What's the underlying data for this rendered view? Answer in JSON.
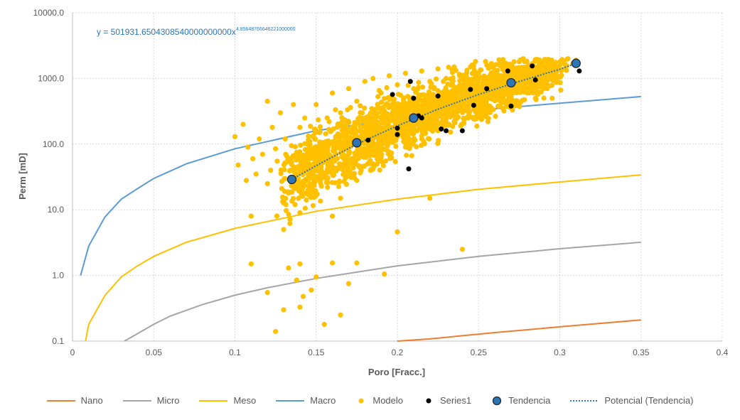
{
  "chart_data": {
    "type": "scatter",
    "title": "",
    "xlabel": "Poro [Fracc.]",
    "ylabel": "Perm [mD]",
    "xlim": [
      0,
      0.4
    ],
    "ylim": [
      0.1,
      10000
    ],
    "y_scale": "log",
    "grid": true,
    "legend_position": "bottom",
    "x_ticks": [
      "0",
      "0.05",
      "0.1",
      "0.15",
      "0.2",
      "0.25",
      "0.3",
      "0.35",
      "0.4"
    ],
    "y_ticks": [
      "0.1",
      "1.0",
      "10.0",
      "100.0",
      "1000.0",
      "10000.0"
    ],
    "annotation": {
      "base": "y = 501931.6504308540000000000x",
      "exponent": "4.85648766646221000000"
    },
    "series": [
      {
        "name": "Nano",
        "kind": "line",
        "color": "#ED7D31",
        "x": [
          0.2,
          0.22,
          0.24,
          0.26,
          0.28,
          0.3,
          0.32,
          0.35
        ],
        "y": [
          0.1,
          0.108,
          0.121,
          0.135,
          0.149,
          0.165,
          0.182,
          0.21
        ]
      },
      {
        "name": "Micro",
        "kind": "line",
        "color": "#A5A5A5",
        "x": [
          0.032,
          0.04,
          0.05,
          0.06,
          0.08,
          0.1,
          0.12,
          0.15,
          0.2,
          0.25,
          0.3,
          0.35
        ],
        "y": [
          0.1,
          0.13,
          0.18,
          0.24,
          0.36,
          0.5,
          0.65,
          0.9,
          1.4,
          1.95,
          2.55,
          3.2
        ]
      },
      {
        "name": "Meso",
        "kind": "line",
        "color": "#FFC000",
        "x": [
          0.008,
          0.01,
          0.02,
          0.03,
          0.04,
          0.05,
          0.07,
          0.1,
          0.15,
          0.2,
          0.25,
          0.3,
          0.35
        ],
        "y": [
          0.1,
          0.18,
          0.5,
          0.95,
          1.4,
          1.95,
          3.2,
          5.2,
          9.5,
          14.5,
          20.5,
          26.5,
          34
        ]
      },
      {
        "name": "Macro",
        "kind": "line",
        "color": "#5B9BD5",
        "x": [
          0.005,
          0.01,
          0.02,
          0.03,
          0.04,
          0.05,
          0.07,
          0.1,
          0.15,
          0.2,
          0.25,
          0.3,
          0.35
        ],
        "y": [
          1.0,
          2.8,
          7.8,
          14.5,
          21,
          30,
          50,
          85,
          160,
          240,
          330,
          420,
          530
        ]
      },
      {
        "name": "Modelo",
        "kind": "scatter",
        "color": "#FFC000",
        "x": [
          0.1,
          0.102,
          0.105,
          0.107,
          0.108,
          0.11,
          0.111,
          0.113,
          0.115,
          0.117,
          0.12,
          0.12,
          0.122,
          0.123,
          0.125,
          0.126,
          0.128,
          0.13,
          0.131,
          0.132,
          0.133,
          0.135,
          0.136,
          0.137,
          0.138,
          0.139,
          0.14,
          0.14,
          0.142,
          0.143,
          0.145,
          0.146,
          0.148,
          0.15,
          0.15,
          0.152,
          0.153,
          0.155,
          0.157,
          0.158,
          0.16,
          0.16,
          0.162,
          0.163,
          0.165,
          0.165,
          0.168,
          0.17,
          0.17,
          0.172,
          0.175,
          0.175,
          0.178,
          0.18,
          0.18,
          0.182,
          0.185,
          0.185,
          0.188,
          0.19,
          0.19,
          0.193,
          0.195,
          0.195,
          0.198,
          0.2,
          0.2,
          0.203,
          0.205,
          0.205,
          0.208,
          0.21,
          0.21,
          0.213,
          0.215,
          0.215,
          0.218,
          0.22,
          0.22,
          0.223,
          0.225,
          0.225,
          0.228,
          0.23,
          0.23,
          0.233,
          0.235,
          0.235,
          0.238,
          0.24,
          0.24,
          0.243,
          0.245,
          0.245,
          0.248,
          0.25,
          0.25,
          0.253,
          0.255,
          0.255,
          0.258,
          0.26,
          0.26,
          0.263,
          0.265,
          0.265,
          0.268,
          0.27,
          0.27,
          0.273,
          0.275,
          0.275,
          0.278,
          0.28,
          0.28,
          0.283,
          0.285,
          0.285,
          0.288,
          0.29,
          0.29,
          0.293,
          0.295,
          0.298,
          0.3,
          0.303,
          0.305,
          0.308,
          0.31,
          0.12,
          0.125,
          0.13,
          0.133,
          0.138,
          0.14,
          0.142,
          0.147,
          0.15,
          0.155,
          0.16,
          0.165,
          0.17,
          0.175,
          0.192,
          0.2,
          0.22,
          0.24,
          0.16,
          0.14,
          0.11
        ],
        "y": [
          130,
          48,
          200,
          28,
          90,
          8,
          60,
          35,
          120,
          70,
          450,
          25,
          40,
          180,
          85,
          55,
          300,
          5,
          120,
          65,
          18,
          40,
          400,
          12,
          75,
          30,
          180,
          9,
          50,
          250,
          20,
          110,
          60,
          28,
          400,
          150,
          45,
          90,
          22,
          220,
          35,
          600,
          130,
          60,
          15,
          300,
          95,
          40,
          700,
          180,
          28,
          450,
          120,
          75,
          900,
          220,
          50,
          1000,
          160,
          95,
          600,
          280,
          70,
          1100,
          380,
          130,
          800,
          240,
          90,
          1200,
          420,
          180,
          700,
          320,
          120,
          1300,
          500,
          240,
          900,
          380,
          160,
          1400,
          600,
          280,
          1000,
          450,
          220,
          1500,
          700,
          330,
          1100,
          520,
          260,
          1500,
          800,
          400,
          1200,
          600,
          300,
          1600,
          900,
          460,
          1300,
          700,
          350,
          1700,
          1000,
          520,
          1500,
          800,
          420,
          1800,
          1100,
          600,
          1500,
          900,
          500,
          1900,
          1200,
          700,
          1600,
          1000,
          1900,
          1300,
          1800,
          1400,
          2000,
          1700,
          1900,
          0.55,
          0.14,
          0.3,
          1.3,
          0.85,
          0.33,
          0.48,
          0.6,
          0.95,
          0.18,
          1.55,
          0.25,
          0.75,
          1.55,
          1.05,
          4.6,
          15,
          2.5,
          8,
          1.5,
          1.5
        ],
        "note_points_shown": "dense cloud"
      },
      {
        "name": "Series1",
        "kind": "scatter",
        "color": "#000000",
        "x": [
          0.182,
          0.197,
          0.2,
          0.2,
          0.207,
          0.208,
          0.21,
          0.213,
          0.215,
          0.225,
          0.227,
          0.23,
          0.24,
          0.245,
          0.247,
          0.255,
          0.268,
          0.27,
          0.283,
          0.285,
          0.312
        ],
        "y": [
          115,
          570,
          175,
          140,
          42,
          900,
          500,
          270,
          250,
          540,
          170,
          160,
          160,
          680,
          390,
          700,
          1300,
          380,
          1550,
          950,
          1300
        ]
      },
      {
        "name": "Tendencia",
        "kind": "scatter",
        "color": "#2E75B6",
        "x": [
          0.135,
          0.175,
          0.21,
          0.27,
          0.31
        ],
        "y": [
          29,
          105,
          250,
          860,
          1700
        ]
      },
      {
        "name": "Potencial (Tendencia)",
        "kind": "trendline",
        "color": "#2E75B6",
        "x": [
          0.135,
          0.15,
          0.175,
          0.2,
          0.225,
          0.25,
          0.275,
          0.3,
          0.31
        ],
        "y": [
          29,
          47,
          100,
          190,
          340,
          570,
          900,
          1380,
          1700
        ]
      }
    ],
    "legend": [
      "Nano",
      "Micro",
      "Meso",
      "Macro",
      "Modelo",
      "Series1",
      "Tendencia",
      "Potencial (Tendencia)"
    ]
  }
}
